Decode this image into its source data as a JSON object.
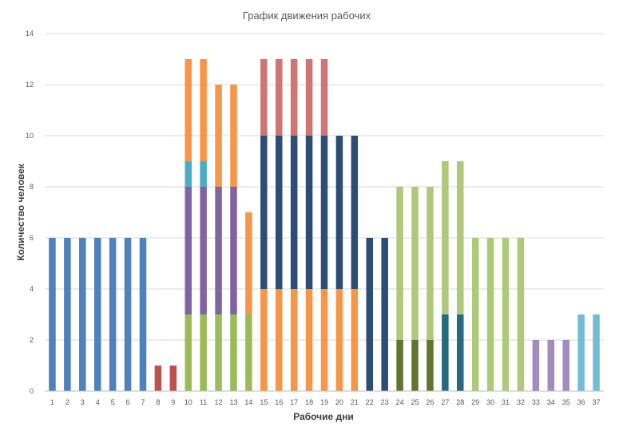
{
  "chart_data": {
    "type": "bar",
    "stacked": true,
    "title": "График движения рабочих",
    "xlabel": "Рабочие дни",
    "ylabel": "Количество человек",
    "ylim": [
      0,
      14
    ],
    "yticks": [
      0,
      2,
      4,
      6,
      8,
      10,
      12,
      14
    ],
    "grid": true,
    "legend": "none",
    "categories": [
      "1",
      "2",
      "3",
      "4",
      "5",
      "6",
      "7",
      "8",
      "9",
      "10",
      "11",
      "12",
      "13",
      "14",
      "15",
      "16",
      "17",
      "18",
      "19",
      "20",
      "21",
      "22",
      "23",
      "24",
      "25",
      "26",
      "27",
      "28",
      "29",
      "30",
      "31",
      "32",
      "33",
      "34",
      "35",
      "36",
      "37"
    ],
    "series": [
      {
        "color": "#4f81bd",
        "values": [
          6,
          6,
          6,
          6,
          6,
          6,
          6,
          0,
          0,
          0,
          0,
          0,
          0,
          0,
          0,
          0,
          0,
          0,
          0,
          0,
          0,
          0,
          0,
          0,
          0,
          0,
          0,
          0,
          0,
          0,
          0,
          0,
          0,
          0,
          0,
          0,
          0
        ]
      },
      {
        "color": "#c0504d",
        "values": [
          0,
          0,
          0,
          0,
          0,
          0,
          0,
          1,
          1,
          0,
          0,
          0,
          0,
          0,
          0,
          0,
          0,
          0,
          0,
          0,
          0,
          0,
          0,
          0,
          0,
          0,
          0,
          0,
          0,
          0,
          0,
          0,
          0,
          0,
          0,
          0,
          0
        ]
      },
      {
        "color": "#9bbb59",
        "values": [
          0,
          0,
          0,
          0,
          0,
          0,
          0,
          0,
          0,
          3,
          3,
          3,
          3,
          3,
          0,
          0,
          0,
          0,
          0,
          0,
          0,
          0,
          0,
          0,
          0,
          0,
          0,
          0,
          0,
          0,
          0,
          0,
          0,
          0,
          0,
          0,
          0
        ]
      },
      {
        "color": "#8064a2",
        "values": [
          0,
          0,
          0,
          0,
          0,
          0,
          0,
          0,
          0,
          5,
          5,
          5,
          5,
          0,
          0,
          0,
          0,
          0,
          0,
          0,
          0,
          0,
          0,
          0,
          0,
          0,
          0,
          0,
          0,
          0,
          0,
          0,
          0,
          0,
          0,
          0,
          0
        ]
      },
      {
        "color": "#4bacc6",
        "values": [
          0,
          0,
          0,
          0,
          0,
          0,
          0,
          0,
          0,
          1,
          1,
          0,
          0,
          0,
          0,
          0,
          0,
          0,
          0,
          0,
          0,
          0,
          0,
          0,
          0,
          0,
          0,
          0,
          0,
          0,
          0,
          0,
          0,
          0,
          0,
          0,
          0
        ]
      },
      {
        "color": "#f79646",
        "values": [
          0,
          0,
          0,
          0,
          0,
          0,
          0,
          0,
          0,
          4,
          4,
          4,
          4,
          4,
          4,
          4,
          4,
          4,
          4,
          4,
          4,
          0,
          0,
          0,
          0,
          0,
          0,
          0,
          0,
          0,
          0,
          0,
          0,
          0,
          0,
          0,
          0
        ]
      },
      {
        "color": "#2c4d75",
        "values": [
          0,
          0,
          0,
          0,
          0,
          0,
          0,
          0,
          0,
          0,
          0,
          0,
          0,
          0,
          6,
          6,
          6,
          6,
          6,
          6,
          6,
          6,
          6,
          0,
          0,
          0,
          0,
          0,
          0,
          0,
          0,
          0,
          0,
          0,
          0,
          0,
          0
        ]
      },
      {
        "color": "#d07474",
        "values": [
          0,
          0,
          0,
          0,
          0,
          0,
          0,
          0,
          0,
          0,
          0,
          0,
          0,
          0,
          3,
          3,
          3,
          3,
          3,
          0,
          0,
          0,
          0,
          0,
          0,
          0,
          0,
          0,
          0,
          0,
          0,
          0,
          0,
          0,
          0,
          0,
          0
        ]
      },
      {
        "color": "#5f7530",
        "values": [
          0,
          0,
          0,
          0,
          0,
          0,
          0,
          0,
          0,
          0,
          0,
          0,
          0,
          0,
          0,
          0,
          0,
          0,
          0,
          0,
          0,
          0,
          0,
          2,
          2,
          2,
          0,
          0,
          0,
          0,
          0,
          0,
          0,
          0,
          0,
          0,
          0
        ]
      },
      {
        "color": "#276a7c",
        "values": [
          0,
          0,
          0,
          0,
          0,
          0,
          0,
          0,
          0,
          0,
          0,
          0,
          0,
          0,
          0,
          0,
          0,
          0,
          0,
          0,
          0,
          0,
          0,
          0,
          0,
          0,
          3,
          3,
          0,
          0,
          0,
          0,
          0,
          0,
          0,
          0,
          0
        ]
      },
      {
        "color": "#afc97a",
        "values": [
          0,
          0,
          0,
          0,
          0,
          0,
          0,
          0,
          0,
          0,
          0,
          0,
          0,
          0,
          0,
          0,
          0,
          0,
          0,
          0,
          0,
          0,
          0,
          6,
          6,
          6,
          6,
          6,
          6,
          6,
          6,
          6,
          0,
          0,
          0,
          0,
          0
        ]
      },
      {
        "color": "#a08cbe",
        "values": [
          0,
          0,
          0,
          0,
          0,
          0,
          0,
          0,
          0,
          0,
          0,
          0,
          0,
          0,
          0,
          0,
          0,
          0,
          0,
          0,
          0,
          0,
          0,
          0,
          0,
          0,
          0,
          0,
          0,
          0,
          0,
          0,
          2,
          2,
          2,
          0,
          0
        ]
      },
      {
        "color": "#72bcd4",
        "values": [
          0,
          0,
          0,
          0,
          0,
          0,
          0,
          0,
          0,
          0,
          0,
          0,
          0,
          0,
          0,
          0,
          0,
          0,
          0,
          0,
          0,
          0,
          0,
          0,
          0,
          0,
          0,
          0,
          0,
          0,
          0,
          0,
          0,
          0,
          0,
          3,
          3
        ]
      }
    ]
  }
}
